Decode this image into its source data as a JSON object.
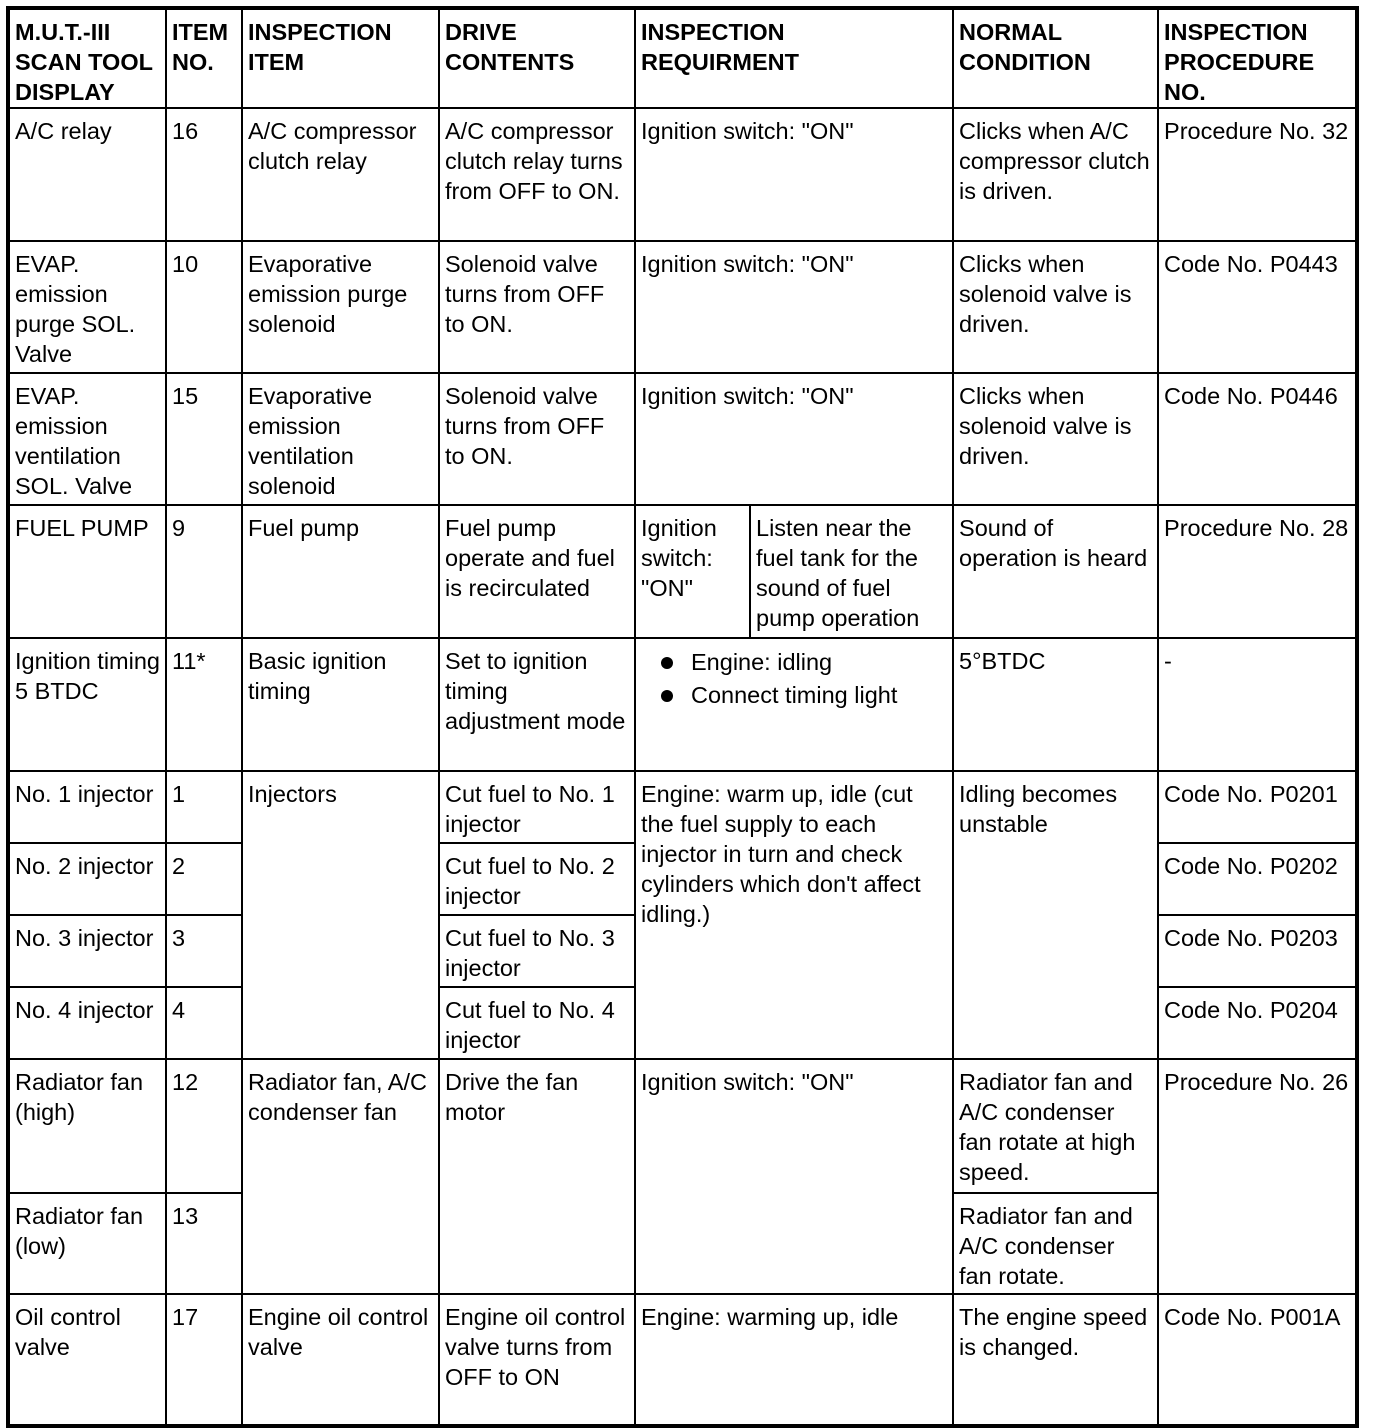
{
  "headers": [
    "M.U.T.-III SCAN TOOL DISPLAY",
    "ITEM NO.",
    "INSPECTION ITEM",
    "DRIVE CONTENTS",
    "INSPECTION REQUIRMENT",
    "NORMAL CONDITION",
    "INSPECTION PROCEDURE NO."
  ],
  "rows": {
    "ac_relay": {
      "display": "A/C relay",
      "item_no": "16",
      "item": "A/C compressor clutch relay",
      "drive": "A/C compressor clutch relay turns from OFF to ON.",
      "requirement": "Ignition switch: \"ON\"",
      "normal": "Clicks when A/C compressor clutch is driven.",
      "procedure": "Procedure No. 32"
    },
    "evap_purge": {
      "display": "EVAP. emission purge SOL. Valve",
      "item_no": "10",
      "item": "Evaporative emission purge solenoid",
      "drive": "Solenoid valve turns from OFF to ON.",
      "requirement": "Ignition switch: \"ON\"",
      "normal": "Clicks when solenoid valve is driven.",
      "procedure": "Code No. P0443"
    },
    "evap_vent": {
      "display": "EVAP. emission ventilation SOL. Valve",
      "item_no": "15",
      "item": "Evaporative emission ventilation solenoid",
      "drive": "Solenoid valve turns from OFF to ON.",
      "requirement": "Ignition switch: \"ON\"",
      "normal": "Clicks when solenoid valve is driven.",
      "procedure": "Code No. P0446"
    },
    "fuel_pump": {
      "display": "FUEL PUMP",
      "item_no": "9",
      "item": "Fuel pump",
      "drive": "Fuel pump operate and fuel is recirculated",
      "requirement_a": "Ignition switch: \"ON\"",
      "requirement_b": "Listen near the fuel tank for the sound of fuel pump operation",
      "normal": "Sound of operation is heard",
      "procedure": "Procedure No. 28"
    },
    "ignition": {
      "display": "Ignition timing 5 BTDC",
      "item_no": "11*",
      "item": "Basic ignition timing",
      "drive": "Set to ignition timing adjustment mode",
      "requirement": [
        "Engine: idling",
        "Connect timing light"
      ],
      "normal": "5°BTDC",
      "procedure": "-"
    },
    "injectors": {
      "item": "Injectors",
      "requirement": "Engine: warm up, idle (cut the fuel supply to each injector in turn and check cylinders which don't affect idling.)",
      "normal": "Idling becomes unstable",
      "list": [
        {
          "display": "No. 1 injector",
          "item_no": "1",
          "drive": "Cut fuel to No. 1 injector",
          "procedure": "Code No. P0201"
        },
        {
          "display": "No. 2 injector",
          "item_no": "2",
          "drive": "Cut fuel to No. 2 injector",
          "procedure": "Code No. P0202"
        },
        {
          "display": "No. 3 injector",
          "item_no": "3",
          "drive": "Cut fuel to No. 3 injector",
          "procedure": "Code No. P0203"
        },
        {
          "display": "No. 4 injector",
          "item_no": "4",
          "drive": "Cut fuel to No. 4 injector",
          "procedure": "Code No. P0204"
        }
      ]
    },
    "radiator": {
      "item": "Radiator fan, A/C condenser fan",
      "drive": "Drive the fan motor",
      "requirement": "Ignition switch: \"ON\"",
      "procedure": "Procedure No. 26",
      "high": {
        "display": "Radiator fan (high)",
        "item_no": "12",
        "normal": "Radiator fan and A/C condenser fan rotate at high speed."
      },
      "low": {
        "display": "Radiator fan (low)",
        "item_no": "13",
        "normal": "Radiator fan and A/C condenser fan rotate."
      }
    },
    "oil": {
      "display": "Oil control valve",
      "item_no": "17",
      "item": "Engine oil control valve",
      "drive": "Engine oil control valve turns from OFF to ON",
      "requirement": "Engine: warming up, idle",
      "normal": "The engine speed is changed.",
      "procedure": "Code No. P001A"
    }
  }
}
